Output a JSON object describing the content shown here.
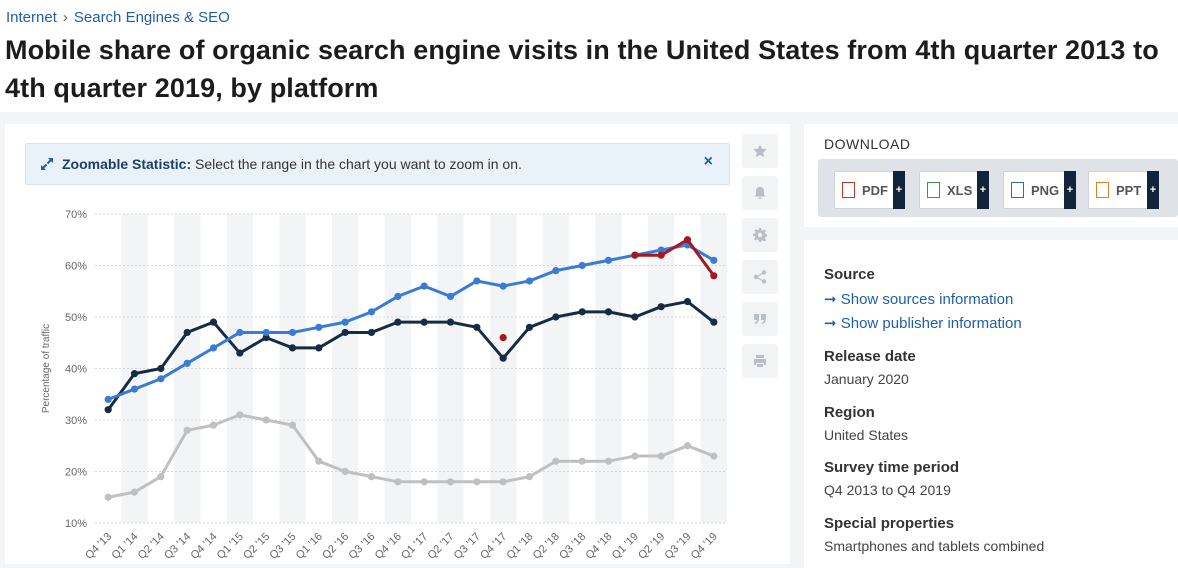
{
  "breadcrumb": {
    "item1": "Internet",
    "separator": "›",
    "item2": "Search Engines & SEO"
  },
  "title": "Mobile share of organic search engine visits in the United States from 4th quarter 2013 to 4th quarter 2019, by platform",
  "zoom": {
    "label": "Zoomable Statistic:",
    "text": "Select the range in the chart you want to zoom in on.",
    "close": "×"
  },
  "tools": [
    "star-icon",
    "bell-icon",
    "gear-icon",
    "share-icon",
    "quote-icon",
    "print-icon"
  ],
  "download": {
    "title": "DOWNLOAD",
    "buttons": [
      {
        "label": "PDF",
        "plus": "+",
        "color": "#c0392b"
      },
      {
        "label": "XLS",
        "plus": "+",
        "color": "#3c9a3c"
      },
      {
        "label": "PNG",
        "plus": "+",
        "color": "#2c6cb0"
      },
      {
        "label": "PPT",
        "plus": "+",
        "color": "#d9822b"
      }
    ]
  },
  "info": {
    "source_head": "Source",
    "source_link1": "➞ Show sources information",
    "source_link2": "➞ Show publisher information",
    "release_head": "Release date",
    "release_val": "January 2020",
    "region_head": "Region",
    "region_val": "United States",
    "period_head": "Survey time period",
    "period_val": "Q4 2013 to Q4 2019",
    "special_head": "Special properties",
    "special_val": "Smartphones and tablets combined"
  },
  "chart_data": {
    "type": "line",
    "ylabel": "Percentage of traffic",
    "ylim": [
      10,
      70
    ],
    "yticks": [
      "10%",
      "20%",
      "30%",
      "40%",
      "50%",
      "60%",
      "70%"
    ],
    "categories": [
      "Q4 '13",
      "Q1 '14",
      "Q2 '14",
      "Q3 '14",
      "Q4 '14",
      "Q1 '15",
      "Q2 '15",
      "Q3 '15",
      "Q1 '16",
      "Q2 '16",
      "Q3 '16",
      "Q4 '16",
      "Q1 '17",
      "Q2 '17",
      "Q3 '17",
      "Q4 '17",
      "Q1 '18",
      "Q2 '18",
      "Q3 '18",
      "Q4 '18",
      "Q1 '19",
      "Q2 '19",
      "Q3 '19",
      "Q4 '19"
    ],
    "grid": true,
    "series": [
      {
        "color": "#3a7bd5",
        "values": [
          34,
          36,
          38,
          41,
          44,
          47,
          47,
          47,
          48,
          49,
          51,
          54,
          56,
          54,
          57,
          56,
          57,
          59,
          60,
          61,
          62,
          63,
          64,
          61
        ]
      },
      {
        "color": "#162c44",
        "values": [
          32,
          39,
          40,
          47,
          49,
          43,
          46,
          44,
          44,
          47,
          47,
          49,
          49,
          49,
          48,
          42,
          48,
          50,
          51,
          51,
          50,
          52,
          53,
          49
        ]
      },
      {
        "color": "#c0c0c0",
        "values": [
          15,
          16,
          19,
          28,
          29,
          31,
          30,
          29,
          22,
          20,
          19,
          18,
          18,
          18,
          18,
          18,
          19,
          22,
          22,
          22,
          23,
          23,
          25,
          23
        ]
      }
    ],
    "highlight": {
      "color": "#a3191f",
      "points": [
        {
          "index": 20,
          "value": 62
        },
        {
          "index": 21,
          "value": 62
        },
        {
          "index": 22,
          "value": 65
        },
        {
          "index": 23,
          "value": 58
        }
      ],
      "isolated": {
        "index": 15,
        "value": 46
      }
    }
  }
}
